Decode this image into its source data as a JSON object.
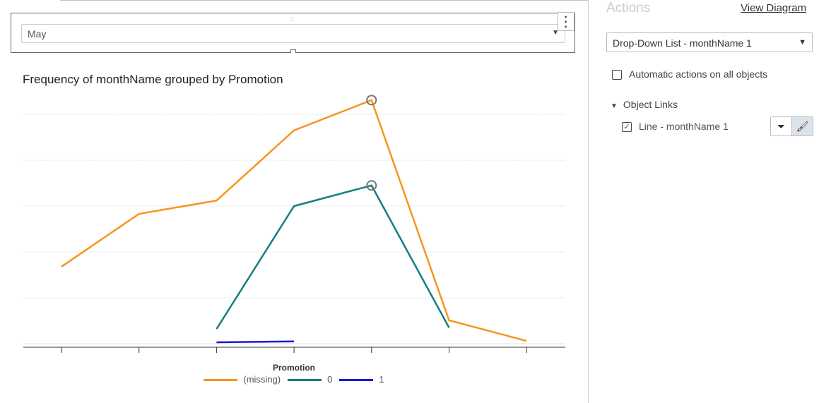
{
  "control": {
    "selected": "May"
  },
  "chart_data": {
    "type": "line",
    "title": "Frequency of monthName grouped by Promotion",
    "x": [
      1,
      2,
      3,
      4,
      5,
      6,
      7
    ],
    "ylim": [
      0,
      5.4
    ],
    "grid": true,
    "legend_title": "Promotion",
    "legend_position": "bottom",
    "series": [
      {
        "name": "(missing)",
        "color": "#f7941d",
        "values": [
          1.68,
          2.83,
          3.12,
          4.65,
          5.31,
          0.51,
          0.06
        ]
      },
      {
        "name": "0",
        "color": "#13807f",
        "values": [
          null,
          null,
          0.32,
          3.0,
          3.45,
          0.35,
          null
        ]
      },
      {
        "name": "1",
        "color": "#1a1ad6",
        "values": [
          null,
          null,
          0.03,
          0.05,
          null,
          null,
          null
        ]
      }
    ],
    "highlighted_x": 5
  },
  "sidebar": {
    "heading": "Actions",
    "view_diagram": "View Diagram",
    "source": "Drop-Down List - monthName 1",
    "auto_label": "Automatic actions on all objects",
    "object_links": "Object Links",
    "link_label": "Line - monthName 1"
  }
}
